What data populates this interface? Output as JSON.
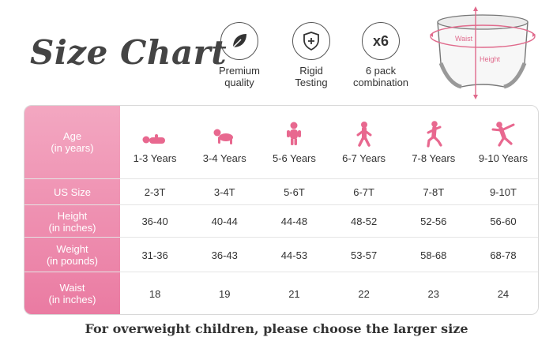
{
  "title": "Size Chart",
  "features": [
    {
      "icon": "leaf-icon",
      "line1": "Premium",
      "line2": "quality"
    },
    {
      "icon": "shield-plus-icon",
      "line1": "Rigid",
      "line2": "Testing"
    },
    {
      "icon": "x6-icon",
      "badge": "x6",
      "line1": "6 pack",
      "line2": "combination"
    }
  ],
  "diagram": {
    "waist_label": "Waist",
    "height_label": "Height"
  },
  "table": {
    "row_headers": {
      "age": {
        "line1": "Age",
        "line2": "(in years)"
      },
      "us_size": {
        "line1": "US Size"
      },
      "height": {
        "line1": "Height",
        "line2": "(in inches)"
      },
      "weight": {
        "line1": "Weight",
        "line2": "(in pounds)"
      },
      "waist": {
        "line1": "Waist",
        "line2": "(in inches)"
      }
    },
    "age": [
      "1-3 Years",
      "3-4 Years",
      "5-6 Years",
      "6-7 Years",
      "7-8 Years",
      "9-10 Years"
    ],
    "age_icons": [
      "baby-lying-icon",
      "baby-crawling-icon",
      "toddler-standing-icon",
      "child-walking-icon",
      "child-running-icon",
      "child-jumping-icon"
    ],
    "us_size": [
      "2-3T",
      "3-4T",
      "5-6T",
      "6-7T",
      "7-8T",
      "9-10T"
    ],
    "height": [
      "36-40",
      "40-44",
      "44-48",
      "48-52",
      "52-56",
      "56-60"
    ],
    "weight": [
      "31-36",
      "36-43",
      "44-53",
      "53-57",
      "58-68",
      "68-78"
    ],
    "waist": [
      "18",
      "19",
      "21",
      "22",
      "23",
      "24"
    ]
  },
  "footer": "For overweight children, please choose the larger size",
  "colors": {
    "accent_pink": "#ea7ba2",
    "icon_pink": "#e8688f"
  }
}
